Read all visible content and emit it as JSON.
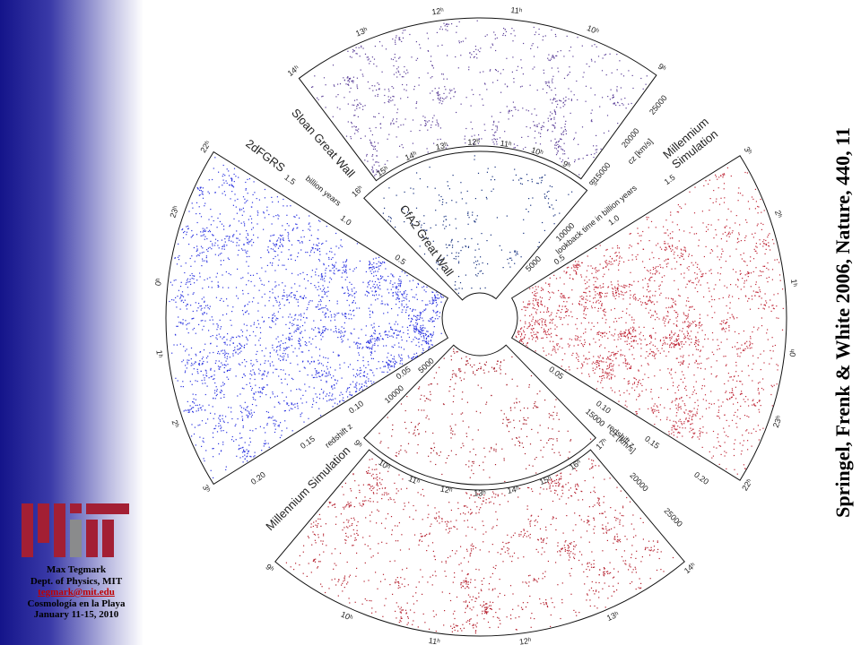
{
  "sidebar": {
    "author": "Max Tegmark",
    "dept": "Dept. of Physics, MIT",
    "email": "tegmark@mit.edu",
    "event": "Cosmología en la Playa",
    "dates": "January 11-15, 2010"
  },
  "citation": "Springel, Frenk & White 2006, Nature, 440, 11",
  "figure": {
    "sloan": {
      "title": "Sloan Great Wall",
      "hours": [
        "14ʰ",
        "13ʰ",
        "12ʰ",
        "11ʰ",
        "10ʰ",
        "9ʰ"
      ],
      "cz": [
        "15000",
        "20000",
        "25000"
      ],
      "cz_label": "cz [km/s]"
    },
    "cfa2": {
      "title": "CfA2 Great Wall",
      "hours": [
        "16ʰ",
        "15ʰ",
        "14ʰ",
        "13ʰ",
        "12ʰ",
        "11ʰ",
        "10ʰ",
        "9ʰ",
        "8ʰ"
      ],
      "cz": [
        "5000",
        "10000"
      ]
    },
    "twodf": {
      "title": "2dFGRS",
      "hours": [
        "3ʰ",
        "2ʰ",
        "1ʰ",
        "0ʰ",
        "23ʰ",
        "22ʰ"
      ],
      "redshift": [
        "0.05",
        "0.10",
        "0.15",
        "0.20"
      ],
      "redshift_label": "redshift z",
      "years": [
        "0.5",
        "1.0",
        "1.5"
      ],
      "years_label": "billion years"
    },
    "mill_right": {
      "title_lines": [
        "Millennium",
        "Simulation"
      ],
      "hours": [
        "3ʰ",
        "2ʰ",
        "1ʰ",
        "0ʰ",
        "23ʰ",
        "22ʰ"
      ],
      "redshift": [
        "0.05",
        "0.10",
        "0.15",
        "0.20"
      ],
      "redshift_label": "redshift z",
      "years": [
        "0.5",
        "1.0",
        "1.5"
      ],
      "years_label": "lookback time in billion years"
    },
    "mill_small": {
      "hours": [
        "17ʰ",
        "16ʰ",
        "15ʰ",
        "14ʰ",
        "13ʰ",
        "12ʰ",
        "11ʰ",
        "10ʰ",
        "9ʰ"
      ],
      "cz": [
        "5000",
        "10000"
      ],
      "cz_outer": "15000",
      "cz_label": "cz [km/s]"
    },
    "mill_bottom": {
      "title": "Millennium Simulation",
      "hours": [
        "14ʰ",
        "13ʰ",
        "12ʰ",
        "11ʰ",
        "10ʰ",
        "9ʰ"
      ],
      "cz": [
        "20000",
        "25000"
      ]
    }
  }
}
